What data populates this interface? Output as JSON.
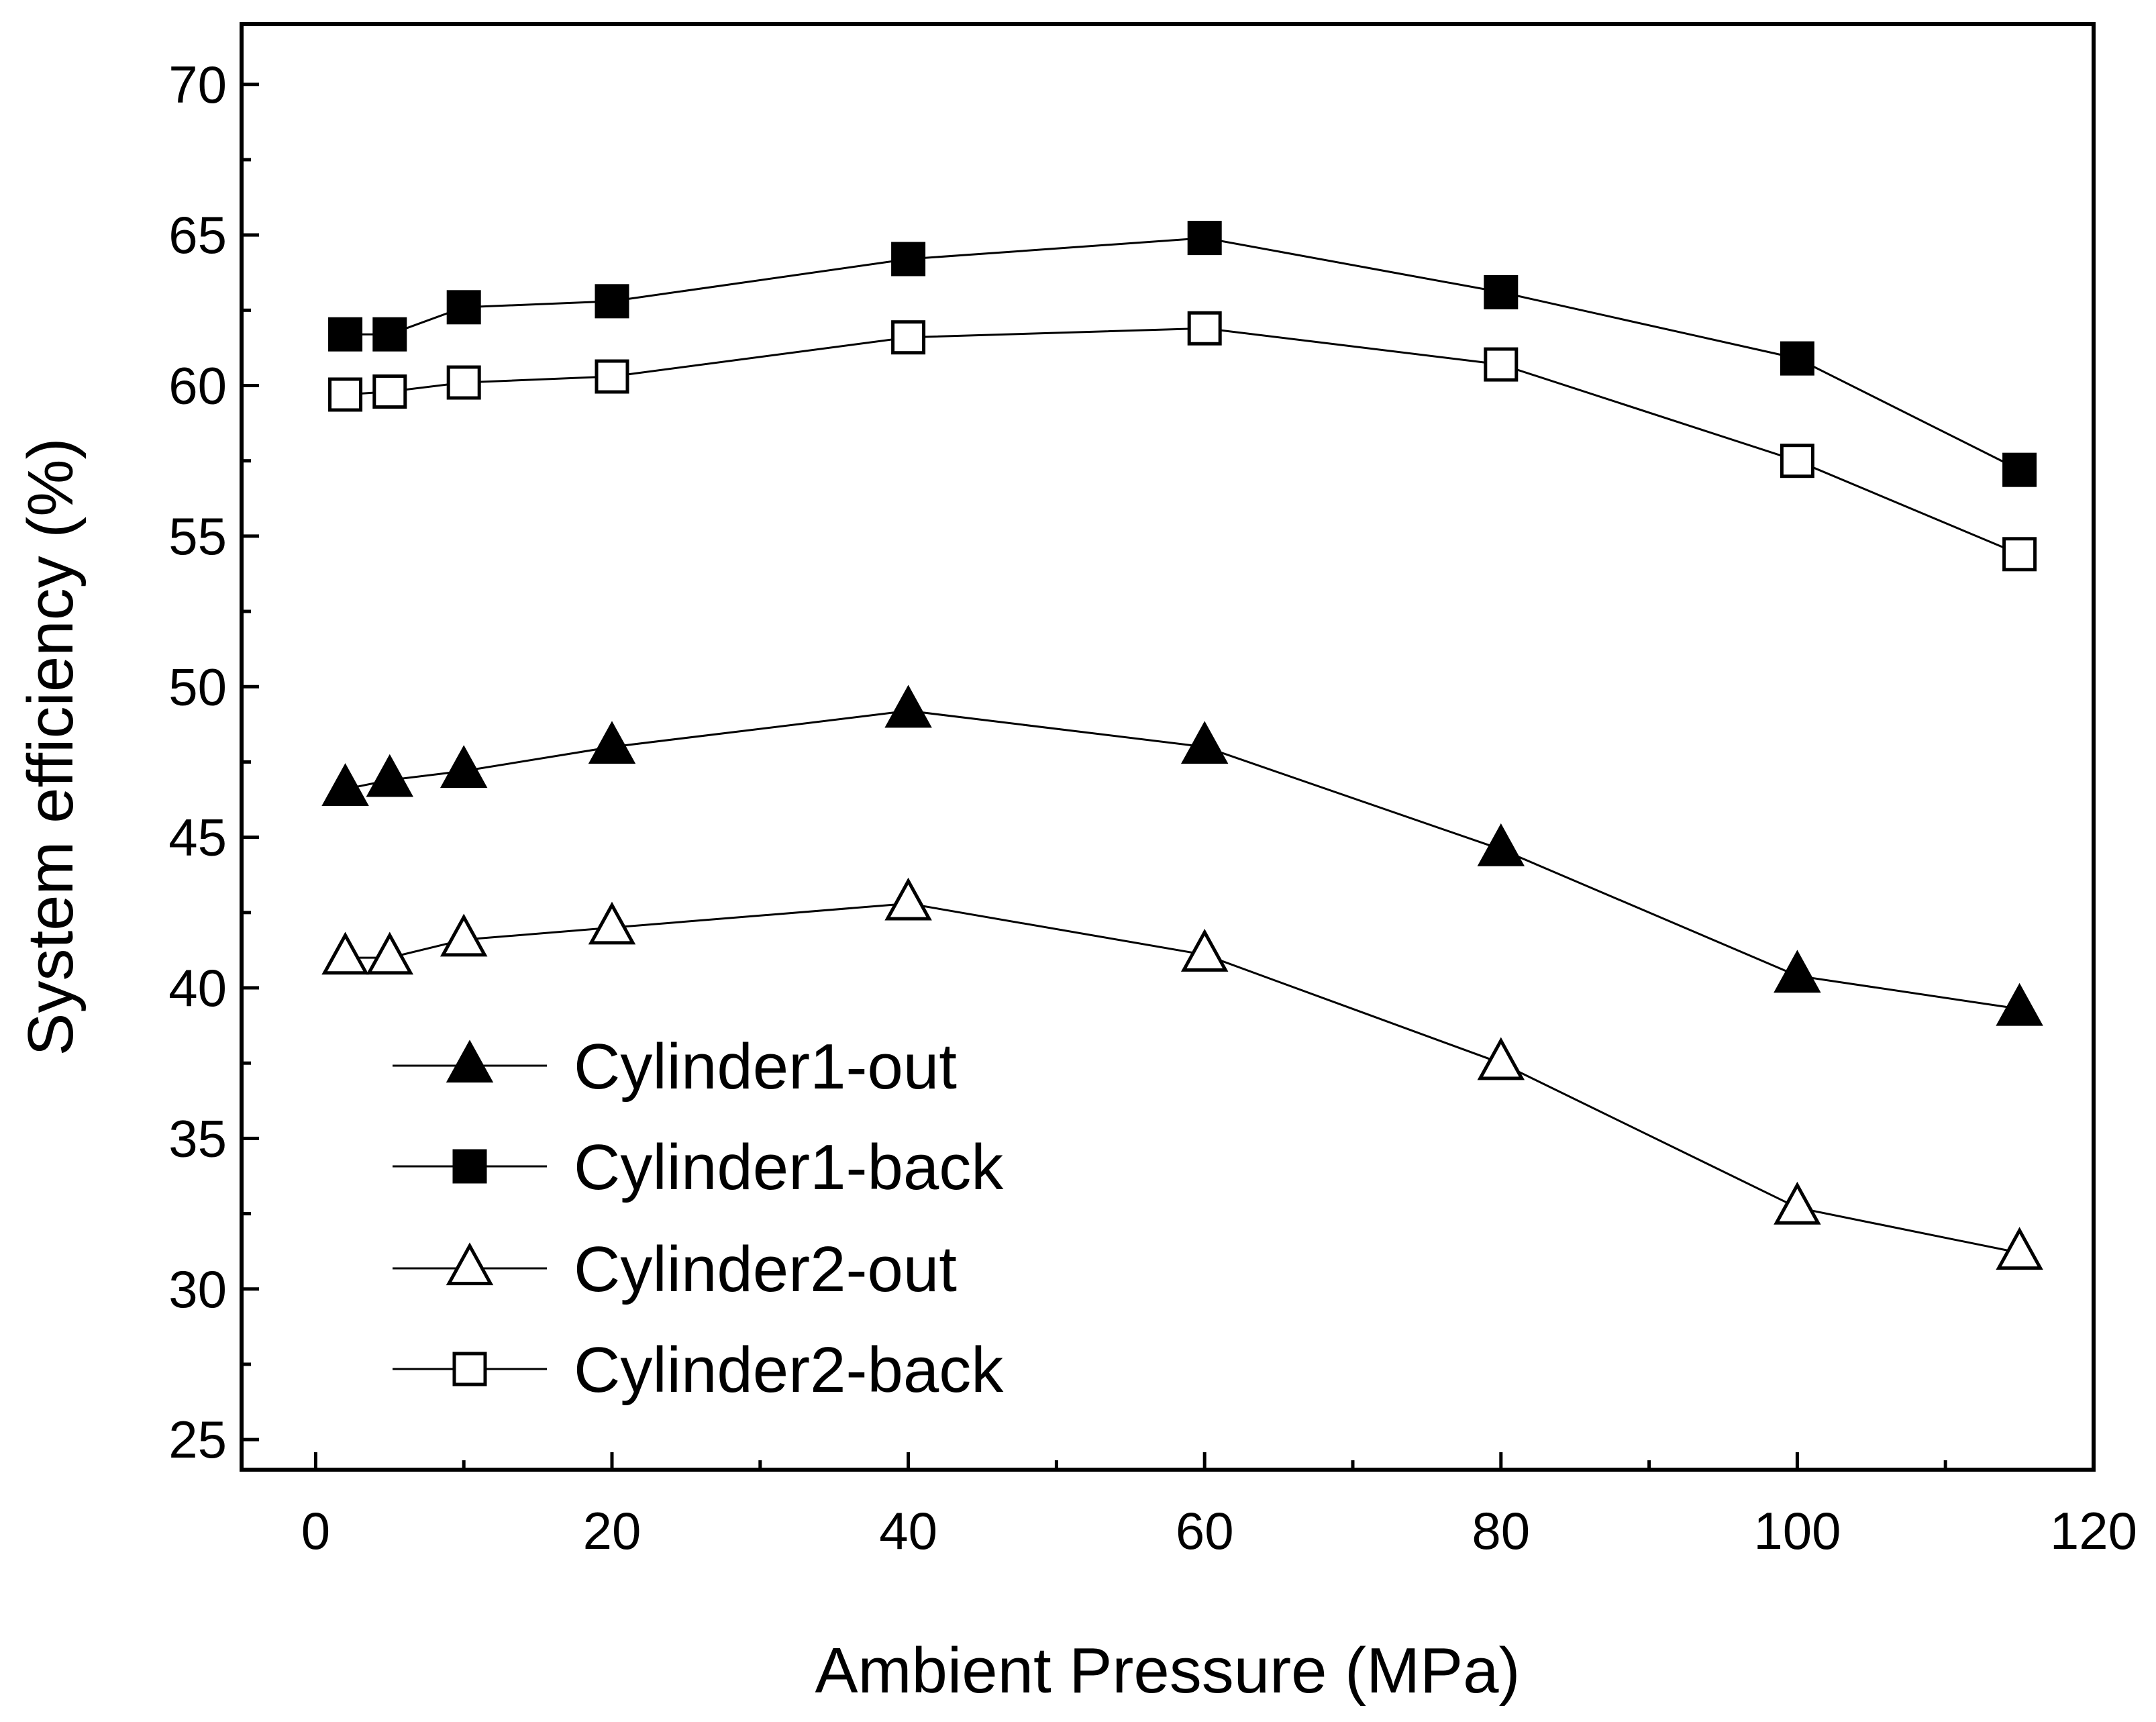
{
  "chart_data": {
    "type": "line",
    "title": "",
    "xlabel": "Ambient Pressure (MPa)",
    "ylabel": "System efficiency (%)",
    "xlim": [
      -5,
      120
    ],
    "ylim": [
      24,
      72
    ],
    "xticks": [
      0,
      20,
      40,
      60,
      80,
      100,
      120
    ],
    "xtick_labels": [
      "0",
      "20",
      "40",
      "60",
      "80",
      "100",
      "120"
    ],
    "yticks": [
      25,
      30,
      35,
      40,
      45,
      50,
      55,
      60,
      65,
      70
    ],
    "ytick_labels": [
      "25",
      "30",
      "35",
      "40",
      "45",
      "50",
      "55",
      "60",
      "65",
      "70"
    ],
    "x": [
      2,
      5,
      10,
      20,
      40,
      60,
      80,
      100,
      115
    ],
    "series": [
      {
        "name": "Cylinder1-out",
        "marker": "triangle",
        "filled": true,
        "values": [
          46.6,
          46.9,
          47.2,
          48.0,
          49.2,
          48.0,
          44.6,
          40.4,
          39.3
        ]
      },
      {
        "name": "Cylinder1-back",
        "marker": "square",
        "filled": true,
        "values": [
          61.7,
          61.7,
          62.6,
          62.8,
          64.2,
          64.9,
          63.1,
          60.9,
          57.2
        ]
      },
      {
        "name": "Cylinder2-out",
        "marker": "triangle",
        "filled": false,
        "values": [
          41.0,
          41.0,
          41.6,
          42.0,
          42.8,
          41.1,
          37.5,
          32.7,
          31.2
        ]
      },
      {
        "name": "Cylinder2-back",
        "marker": "square",
        "filled": false,
        "values": [
          59.7,
          59.8,
          60.1,
          60.3,
          61.6,
          61.9,
          60.7,
          57.5,
          54.4
        ]
      }
    ],
    "legend": {
      "position": "bottom-left",
      "entries": [
        "Cylinder1-out",
        "Cylinder1-back",
        "Cylinder2-out",
        "Cylinder2-back"
      ]
    },
    "grid": false,
    "colors": {
      "line": "#000000",
      "background": "#ffffff"
    }
  }
}
